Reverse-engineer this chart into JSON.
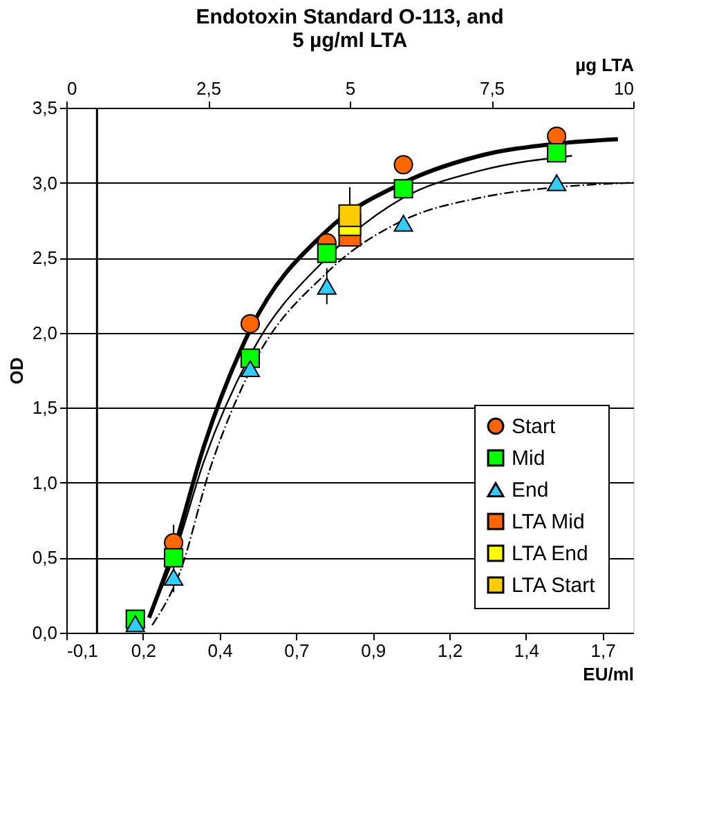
{
  "chart_data": {
    "type": "scatter",
    "title": "Endotoxin  Standard O-113, and\n5 µg/ml LTA",
    "xlabel": "EU/ml",
    "ylabel": "OD",
    "x2label": "µg LTA",
    "x": [
      0.125,
      0.25,
      0.5,
      0.75,
      1.0,
      1.5
    ],
    "series": [
      {
        "name": "Start",
        "color": "#ff6600",
        "marker": "circle",
        "values": [
          null,
          0.6,
          2.06,
          2.6,
          3.12,
          3.31
        ],
        "errors": [
          null,
          0.12,
          null,
          null,
          null,
          null
        ]
      },
      {
        "name": "Mid",
        "color": "#00ff00",
        "marker": "square",
        "values": [
          0.09,
          0.5,
          1.83,
          2.53,
          2.96,
          3.2
        ]
      },
      {
        "name": "End",
        "color": "#33ccff",
        "marker": "triangle",
        "values": [
          0.06,
          0.37,
          1.76,
          2.31,
          2.73,
          3.0
        ],
        "errors": [
          null,
          0.1,
          null,
          0.12,
          null,
          null
        ]
      },
      {
        "name": "LTA Mid",
        "color": "#ff6600",
        "marker": "square",
        "axis": "x2",
        "x": [
          5
        ],
        "values": [
          2.65
        ]
      },
      {
        "name": "LTA End",
        "color": "#ffff00",
        "marker": "square",
        "axis": "x2",
        "x": [
          5
        ],
        "values": [
          2.72
        ]
      },
      {
        "name": "LTA Start",
        "color": "#ffcc00",
        "marker": "square",
        "axis": "x2",
        "x": [
          5
        ],
        "values": [
          2.78
        ],
        "errors": [
          0.19
        ]
      },
      {
        "type": "line",
        "color": "#000000",
        "line_style": "solid",
        "x": [
          0.17,
          0.25,
          0.35,
          0.5,
          0.75,
          1.0,
          1.25,
          1.5,
          1.7
        ],
        "values": [
          0.1,
          0.55,
          1.25,
          2.02,
          2.68,
          3.0,
          3.18,
          3.26,
          3.29
        ]
      },
      {
        "type": "line",
        "color": "#000000",
        "line_style": "solid",
        "x": [
          0.17,
          0.25,
          0.35,
          0.5,
          0.75,
          1.0,
          1.25,
          1.55
        ],
        "values": [
          0.1,
          0.5,
          1.15,
          1.85,
          2.5,
          2.9,
          3.08,
          3.18
        ]
      },
      {
        "type": "line",
        "color": "#000000",
        "line_style": "dashed",
        "x": [
          0.18,
          0.27,
          0.37,
          0.5,
          0.75,
          1.0,
          1.25,
          1.5,
          1.75
        ],
        "values": [
          0.05,
          0.4,
          1.1,
          1.75,
          2.4,
          2.75,
          2.9,
          2.97,
          3.0
        ]
      }
    ],
    "xlim": [
      -0.1,
      1.75
    ],
    "xticks": [
      {
        "value": -0.1,
        "label": "-0,1"
      },
      {
        "value": 0.15,
        "label": "0,2"
      },
      {
        "value": 0.4,
        "label": "0,4"
      },
      {
        "value": 0.65,
        "label": "0,7"
      },
      {
        "value": 0.9,
        "label": "0,9"
      },
      {
        "value": 1.15,
        "label": "1,2"
      },
      {
        "value": 1.4,
        "label": "1,4"
      },
      {
        "value": 1.65,
        "label": "1,7"
      }
    ],
    "x2lim": [
      0,
      10
    ],
    "x2ticks": [
      0,
      {
        "value": 2.5,
        "label": "2,5"
      },
      5,
      {
        "value": 7.5,
        "label": "7,5"
      },
      10
    ],
    "ylim": [
      0,
      3.5
    ],
    "yticks": [
      {
        "value": 0,
        "label": "0,0"
      },
      {
        "value": 0.5,
        "label": "0,5"
      },
      {
        "value": 1,
        "label": "1,0"
      },
      {
        "value": 1.5,
        "label": "1,5"
      },
      {
        "value": 2,
        "label": "2,0"
      },
      {
        "value": 2.5,
        "label": "2,5"
      },
      {
        "value": 3,
        "label": "3,0"
      },
      {
        "value": 3.5,
        "label": "3,5"
      }
    ],
    "ref_lines": [
      {
        "axis": "x",
        "value": 0,
        "color": "#000000"
      }
    ],
    "grid": "y",
    "legend": "bottom right"
  }
}
